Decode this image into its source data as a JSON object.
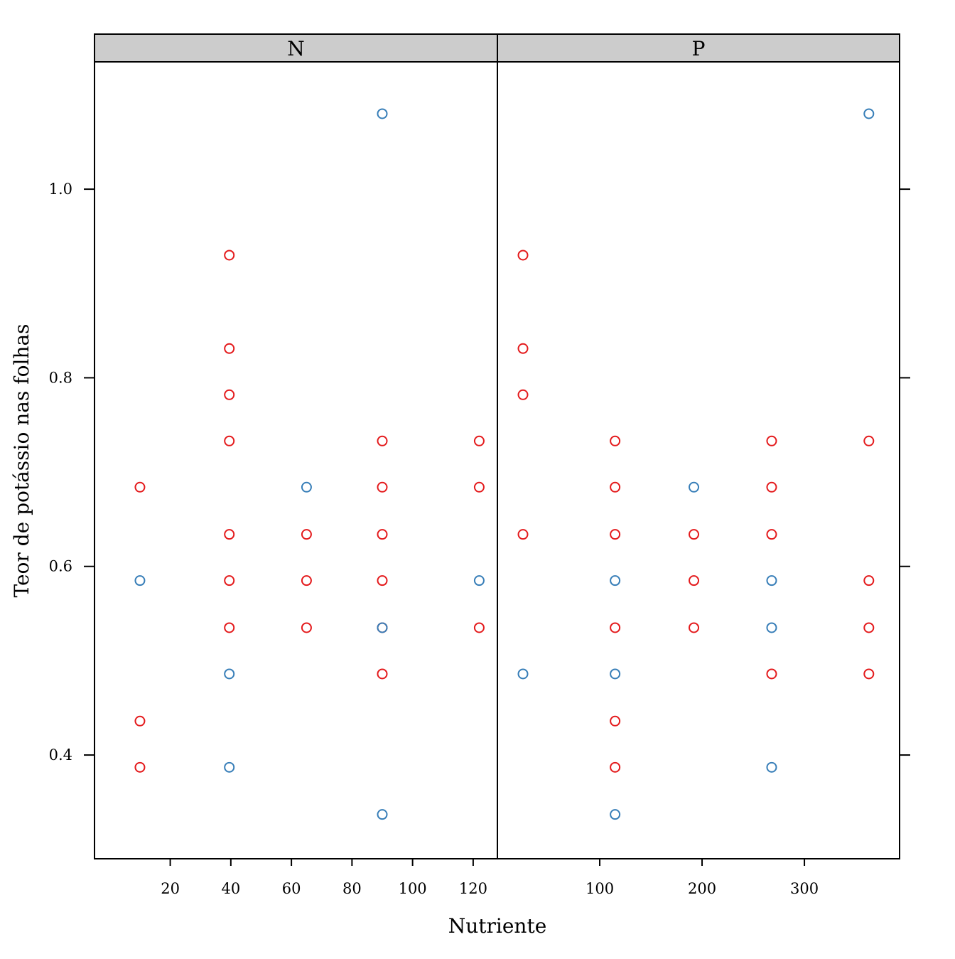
{
  "chart_data": {
    "type": "scatter",
    "xlabel": "Nutriente",
    "ylabel": "Teor de potássio nas folhas",
    "ylim": [
      0.29,
      1.135
    ],
    "y_ticks": [
      0.4,
      0.6,
      0.8,
      1.0
    ],
    "y_tick_labels": [
      "0.4",
      "0.6",
      "0.8",
      "1.0"
    ],
    "colors": {
      "red": "#e41a1c",
      "blue": "#377eb8",
      "strip": "#cccccc"
    },
    "panels": [
      {
        "name": "N",
        "xlim": [
          -5,
          128
        ],
        "x_ticks": [
          20,
          40,
          60,
          80,
          100,
          120
        ],
        "x_tick_labels": [
          "20",
          "40",
          "60",
          "80",
          "100",
          "120"
        ],
        "series": [
          {
            "color": "red",
            "points": [
              [
                10,
                0.684
              ],
              [
                10,
                0.436
              ],
              [
                10,
                0.387
              ],
              [
                39.5,
                0.93
              ],
              [
                39.5,
                0.831
              ],
              [
                39.5,
                0.782
              ],
              [
                39.5,
                0.733
              ],
              [
                39.5,
                0.634
              ],
              [
                39.5,
                0.585
              ],
              [
                39.5,
                0.535
              ],
              [
                65,
                0.634
              ],
              [
                65,
                0.585
              ],
              [
                65,
                0.535
              ],
              [
                90,
                0.733
              ],
              [
                90,
                0.684
              ],
              [
                90,
                0.634
              ],
              [
                90,
                0.585
              ],
              [
                90,
                0.535
              ],
              [
                90,
                0.486
              ],
              [
                122,
                0.733
              ],
              [
                122,
                0.684
              ],
              [
                122,
                0.535
              ]
            ]
          },
          {
            "color": "blue",
            "points": [
              [
                10,
                0.585
              ],
              [
                39.5,
                0.486
              ],
              [
                39.5,
                0.387
              ],
              [
                65,
                0.684
              ],
              [
                90,
                1.08
              ],
              [
                90,
                0.535
              ],
              [
                90,
                0.337
              ],
              [
                122,
                0.585
              ]
            ]
          }
        ]
      },
      {
        "name": "P",
        "xlim": [
          0,
          393
        ],
        "x_ticks": [
          100,
          200,
          300
        ],
        "x_tick_labels": [
          "100",
          "200",
          "300"
        ],
        "series": [
          {
            "color": "red",
            "points": [
              [
                25,
                0.93
              ],
              [
                25,
                0.831
              ],
              [
                25,
                0.782
              ],
              [
                25,
                0.634
              ],
              [
                115,
                0.733
              ],
              [
                115,
                0.684
              ],
              [
                115,
                0.634
              ],
              [
                115,
                0.535
              ],
              [
                115,
                0.436
              ],
              [
                115,
                0.387
              ],
              [
                192,
                0.634
              ],
              [
                192,
                0.585
              ],
              [
                192,
                0.535
              ],
              [
                268,
                0.733
              ],
              [
                268,
                0.684
              ],
              [
                268,
                0.634
              ],
              [
                268,
                0.486
              ],
              [
                363,
                0.733
              ],
              [
                363,
                0.585
              ],
              [
                363,
                0.535
              ],
              [
                363,
                0.486
              ]
            ]
          },
          {
            "color": "blue",
            "points": [
              [
                25,
                0.486
              ],
              [
                115,
                0.585
              ],
              [
                115,
                0.486
              ],
              [
                115,
                0.337
              ],
              [
                192,
                0.684
              ],
              [
                268,
                0.585
              ],
              [
                268,
                0.535
              ],
              [
                268,
                0.387
              ],
              [
                363,
                1.08
              ]
            ]
          }
        ]
      }
    ]
  }
}
